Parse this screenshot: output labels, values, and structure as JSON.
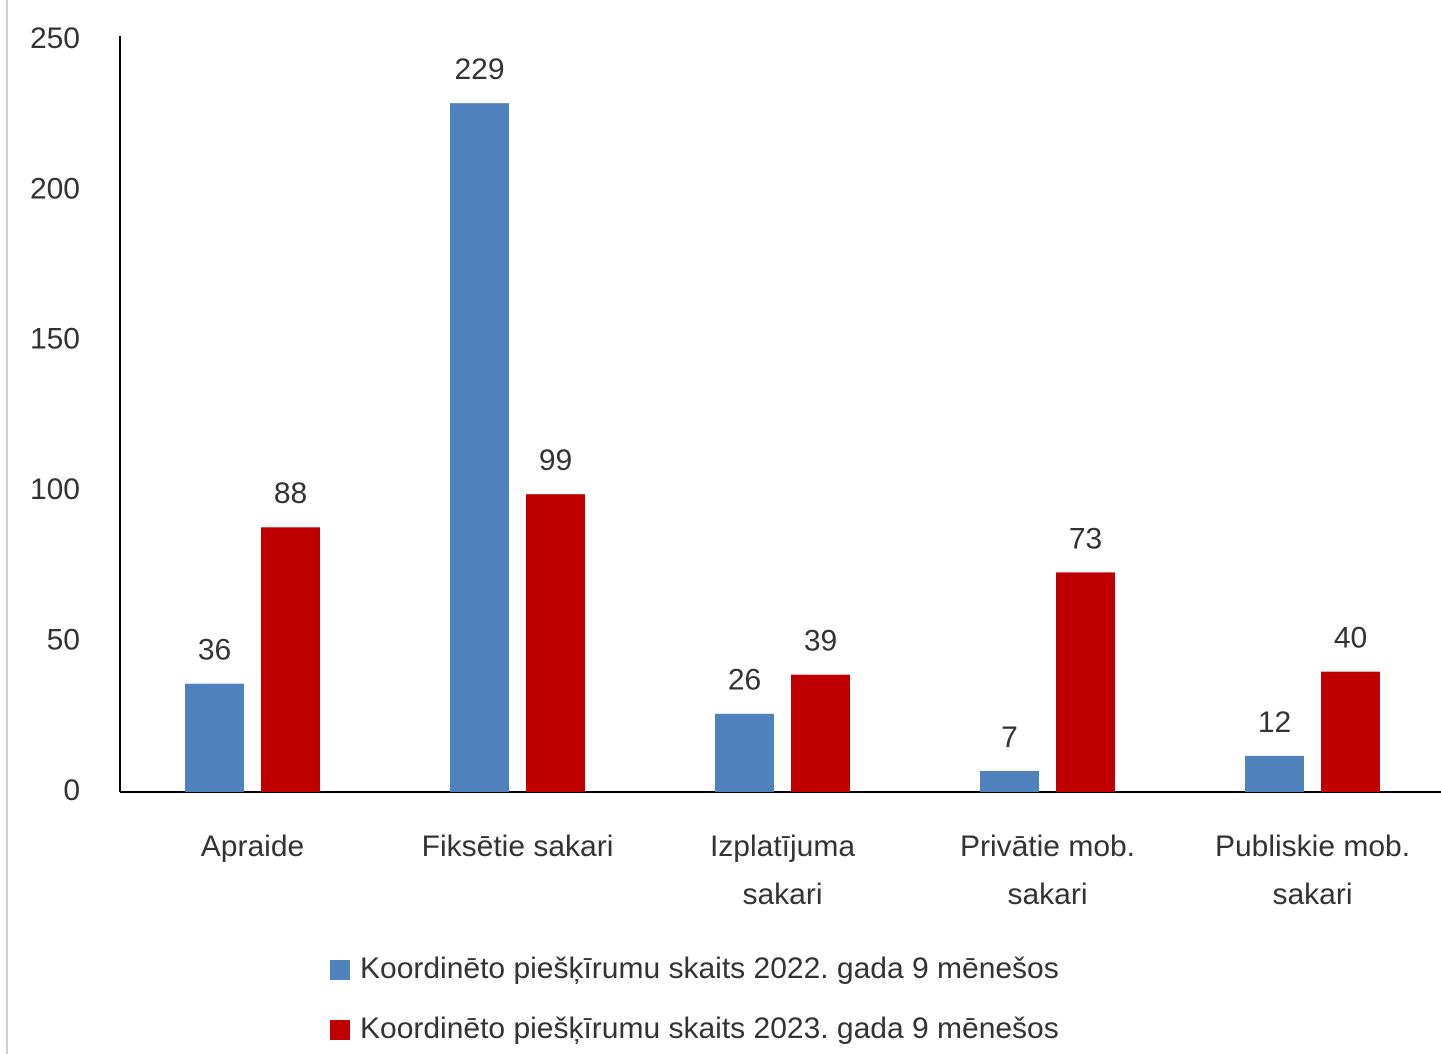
{
  "chart_data": {
    "type": "bar",
    "categories": [
      "Apraide",
      "Fiksētie sakari",
      "Izplatījuma sakari",
      "Privātie mob. sakari",
      "Publiskie mob. sakari"
    ],
    "series": [
      {
        "name": "Koordinēto piešķīrumu skaits 2022. gada 9 mēnešos",
        "color": "#4f81bd",
        "values": [
          36,
          229,
          26,
          7,
          12
        ]
      },
      {
        "name": "Koordinēto piešķīrumu skaits 2023. gada 9 mēnešos",
        "color": "#c00000",
        "values": [
          88,
          99,
          39,
          73,
          40
        ]
      }
    ],
    "ylim": [
      0,
      250
    ],
    "yticks": [
      0,
      50,
      100,
      150,
      200,
      250
    ],
    "grid": false,
    "legend": "bottom"
  }
}
